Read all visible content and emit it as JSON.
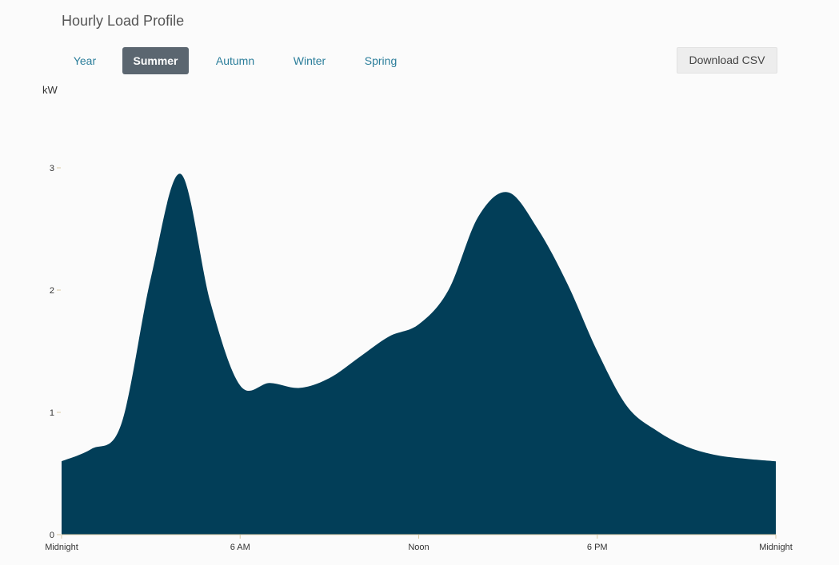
{
  "title": "Hourly Load Profile",
  "tabs": [
    {
      "label": "Year",
      "active": false
    },
    {
      "label": "Summer",
      "active": true
    },
    {
      "label": "Autumn",
      "active": false
    },
    {
      "label": "Winter",
      "active": false
    },
    {
      "label": "Spring",
      "active": false
    }
  ],
  "download_label": "Download CSV",
  "colors": {
    "area": "#023e58",
    "active_tab": "#5b6670",
    "tab_text": "#2a7d9a"
  },
  "chart_data": {
    "type": "area",
    "title": "",
    "xlabel": "",
    "ylabel": "kW",
    "x": [
      0,
      1,
      2,
      3,
      4,
      5,
      6,
      7,
      8,
      9,
      10,
      11,
      12,
      13,
      14,
      15,
      16,
      17,
      18,
      19,
      20,
      21,
      22,
      23,
      24
    ],
    "values": [
      0.6,
      0.7,
      0.9,
      2.1,
      2.95,
      1.9,
      1.22,
      1.24,
      1.2,
      1.28,
      1.45,
      1.62,
      1.72,
      2.0,
      2.6,
      2.8,
      2.5,
      2.05,
      1.5,
      1.05,
      0.85,
      0.72,
      0.65,
      0.62,
      0.6
    ],
    "xlim": [
      0,
      24
    ],
    "ylim": [
      0,
      3
    ],
    "x_ticks": [
      {
        "value": 0,
        "label": "Midnight"
      },
      {
        "value": 6,
        "label": "6 AM"
      },
      {
        "value": 12,
        "label": "Noon"
      },
      {
        "value": 18,
        "label": "6 PM"
      },
      {
        "value": 24,
        "label": "Midnight"
      }
    ],
    "y_ticks": [
      0,
      1,
      2,
      3
    ],
    "grid": false,
    "legend": "none"
  }
}
